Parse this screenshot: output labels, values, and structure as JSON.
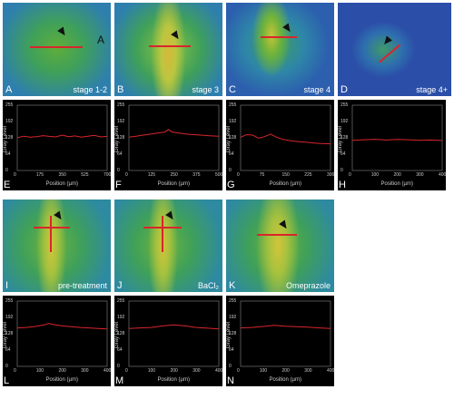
{
  "images": [
    {
      "letter": "A",
      "stage": "stage 1-2",
      "extra": "A"
    },
    {
      "letter": "B",
      "stage": "stage 3"
    },
    {
      "letter": "C",
      "stage": "stage 4"
    },
    {
      "letter": "D",
      "stage": "stage 4+"
    },
    {
      "letter": "I",
      "stage": "pre-treatment"
    },
    {
      "letter": "J",
      "stage": "BaCl₂"
    },
    {
      "letter": "K",
      "stage": "Omeprazole"
    }
  ],
  "plots": [
    {
      "letter": "E",
      "xticks": [
        "0",
        "175",
        "350",
        "525",
        "700"
      ]
    },
    {
      "letter": "F",
      "xticks": [
        "0",
        "125",
        "250",
        "375",
        "500"
      ]
    },
    {
      "letter": "G",
      "xticks": [
        "0",
        "75",
        "150",
        "225",
        "300"
      ]
    },
    {
      "letter": "H",
      "xticks": [
        "0",
        "100",
        "200",
        "300",
        "400"
      ]
    },
    {
      "letter": "L",
      "xticks": [
        "0",
        "100",
        "200",
        "300",
        "400"
      ]
    },
    {
      "letter": "M",
      "xticks": [
        "0",
        "100",
        "200",
        "300",
        "400"
      ]
    },
    {
      "letter": "N",
      "xticks": [
        "0",
        "100",
        "200",
        "300",
        "400"
      ]
    }
  ],
  "axis": {
    "ylabel": "Gray Level",
    "xlabel": "Position (µm)",
    "yticks": [
      "0",
      "64",
      "128",
      "192",
      "255"
    ]
  },
  "colors": {
    "background": "#2f6fb0",
    "tissue": "#2fa35a",
    "streak": "#d6c43a",
    "trace": "#d8262c",
    "plot_bg": "#000000"
  },
  "chart_data": [
    {
      "type": "line",
      "id": "E",
      "xlabel": "Position (µm)",
      "ylabel": "Gray Level",
      "xlim": [
        0,
        700
      ],
      "ylim": [
        0,
        255
      ],
      "x": [
        0,
        50,
        100,
        150,
        200,
        250,
        300,
        350,
        400,
        450,
        500,
        550,
        600,
        650,
        700
      ],
      "values": [
        128,
        134,
        130,
        132,
        136,
        133,
        131,
        138,
        132,
        135,
        130,
        134,
        137,
        131,
        133
      ]
    },
    {
      "type": "line",
      "id": "F",
      "xlabel": "Position (µm)",
      "ylabel": "Gray Level",
      "xlim": [
        0,
        500
      ],
      "ylim": [
        0,
        255
      ],
      "x": [
        0,
        40,
        80,
        120,
        160,
        200,
        220,
        240,
        280,
        320,
        360,
        400,
        440,
        500
      ],
      "values": [
        130,
        134,
        138,
        142,
        146,
        150,
        160,
        150,
        146,
        142,
        140,
        138,
        136,
        134
      ]
    },
    {
      "type": "line",
      "id": "G",
      "xlabel": "Position (µm)",
      "ylabel": "Gray Level",
      "xlim": [
        0,
        300
      ],
      "ylim": [
        0,
        255
      ],
      "x": [
        0,
        20,
        40,
        60,
        80,
        100,
        120,
        140,
        160,
        180,
        200,
        220,
        240,
        260,
        300
      ],
      "values": [
        130,
        140,
        138,
        126,
        132,
        142,
        130,
        122,
        118,
        114,
        112,
        110,
        108,
        106,
        104
      ]
    },
    {
      "type": "line",
      "id": "H",
      "xlabel": "Position (µm)",
      "ylabel": "Gray Level",
      "xlim": [
        0,
        400
      ],
      "ylim": [
        0,
        255
      ],
      "x": [
        0,
        50,
        100,
        150,
        200,
        250,
        300,
        350,
        400
      ],
      "values": [
        118,
        120,
        122,
        119,
        121,
        120,
        118,
        119,
        117
      ]
    },
    {
      "type": "line",
      "id": "L",
      "xlabel": "Position (µm)",
      "ylabel": "Gray Level",
      "xlim": [
        0,
        400
      ],
      "ylim": [
        0,
        255
      ],
      "x": [
        0,
        40,
        80,
        120,
        140,
        160,
        200,
        240,
        280,
        320,
        360,
        400
      ],
      "values": [
        150,
        152,
        156,
        162,
        168,
        164,
        158,
        155,
        152,
        150,
        148,
        146
      ]
    },
    {
      "type": "line",
      "id": "M",
      "xlabel": "Position (µm)",
      "ylabel": "Gray Level",
      "xlim": [
        0,
        400
      ],
      "ylim": [
        0,
        255
      ],
      "x": [
        0,
        50,
        100,
        150,
        200,
        250,
        300,
        350,
        400
      ],
      "values": [
        148,
        150,
        152,
        158,
        162,
        158,
        152,
        149,
        146
      ]
    },
    {
      "type": "line",
      "id": "N",
      "xlabel": "Position (µm)",
      "ylabel": "Gray Level",
      "xlim": [
        0,
        400
      ],
      "ylim": [
        0,
        255
      ],
      "x": [
        0,
        50,
        100,
        150,
        200,
        250,
        300,
        350,
        400
      ],
      "values": [
        150,
        152,
        156,
        160,
        157,
        155,
        153,
        150,
        148
      ]
    }
  ]
}
